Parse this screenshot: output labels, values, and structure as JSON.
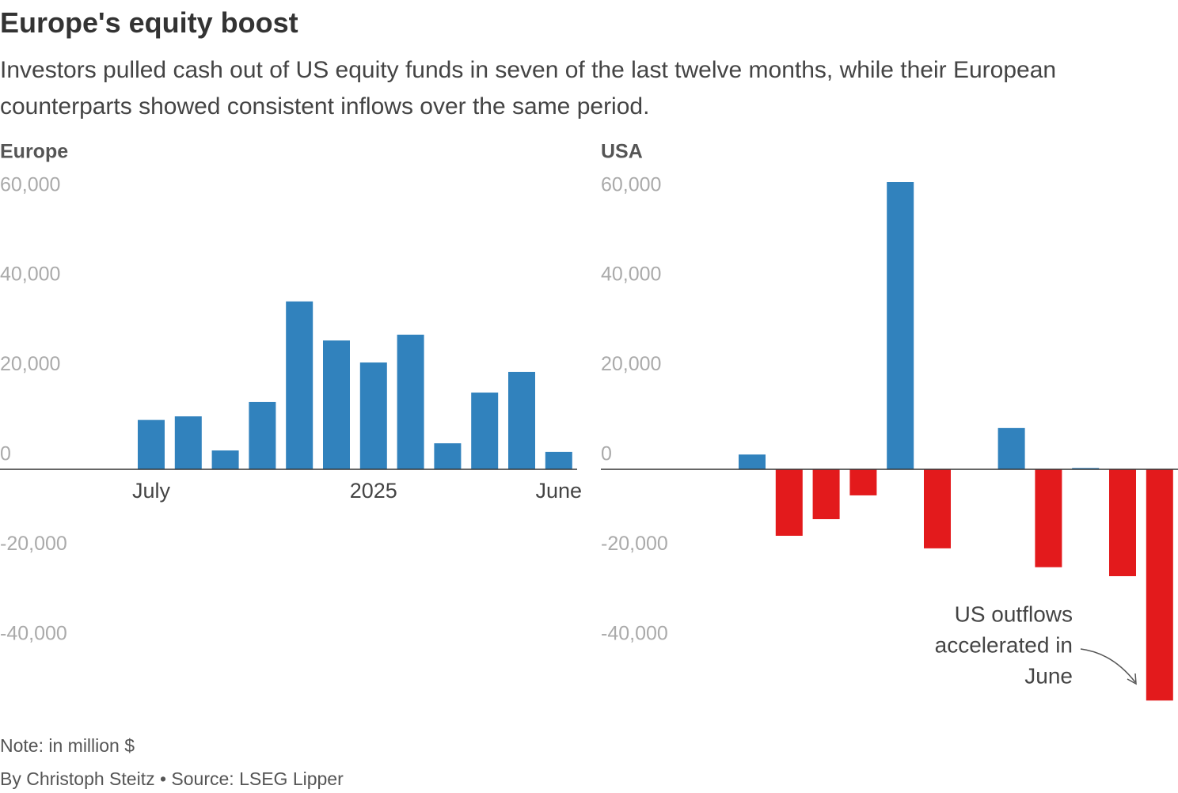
{
  "title": "Europe's equity boost",
  "subtitle": "Investors pulled cash out of US equity funds in seven of the last twelve months, while their European counterparts showed consistent inflows over the same period.",
  "note": "Note: in million $",
  "source": "By Christoph Steitz • Source: LSEG Lipper",
  "chart_data": [
    {
      "type": "bar",
      "title": "Europe",
      "categories": [
        "July",
        null,
        null,
        null,
        null,
        null,
        "2025",
        null,
        null,
        null,
        null,
        "June"
      ],
      "values": [
        11000,
        11800,
        4200,
        15000,
        37400,
        28700,
        23800,
        30000,
        5800,
        17100,
        21700,
        3900
      ],
      "color": "#3182bd",
      "negative_color": "#e31a1c",
      "ylim": [
        -52000,
        64000
      ],
      "yticks": [
        {
          "value": -40000,
          "label": "-40,000"
        },
        {
          "value": -20000,
          "label": "-20,000"
        },
        0,
        {
          "value": 20000,
          "label": "20,000"
        },
        {
          "value": 40000,
          "label": "40,000"
        },
        {
          "value": 60000,
          "label": "60,000"
        }
      ]
    },
    {
      "type": "bar",
      "title": "USA",
      "values": [
        3300,
        -14800,
        -11100,
        -5800,
        64000,
        -17600,
        0,
        9200,
        -21800,
        300,
        -23800,
        -51500
      ],
      "color": "#3182bd",
      "negative_color": "#e31a1c",
      "ylim": [
        -52000,
        64000
      ],
      "yticks": [
        {
          "value": -40000,
          "label": "-40,000"
        },
        {
          "value": -20000,
          "label": "-20,000"
        },
        0,
        {
          "value": 20000,
          "label": "20,000"
        },
        {
          "value": 40000,
          "label": "40,000"
        },
        {
          "value": 60000,
          "label": "60,000"
        }
      ],
      "annotation": [
        "US outflows",
        "accelerated in",
        "June"
      ]
    }
  ]
}
